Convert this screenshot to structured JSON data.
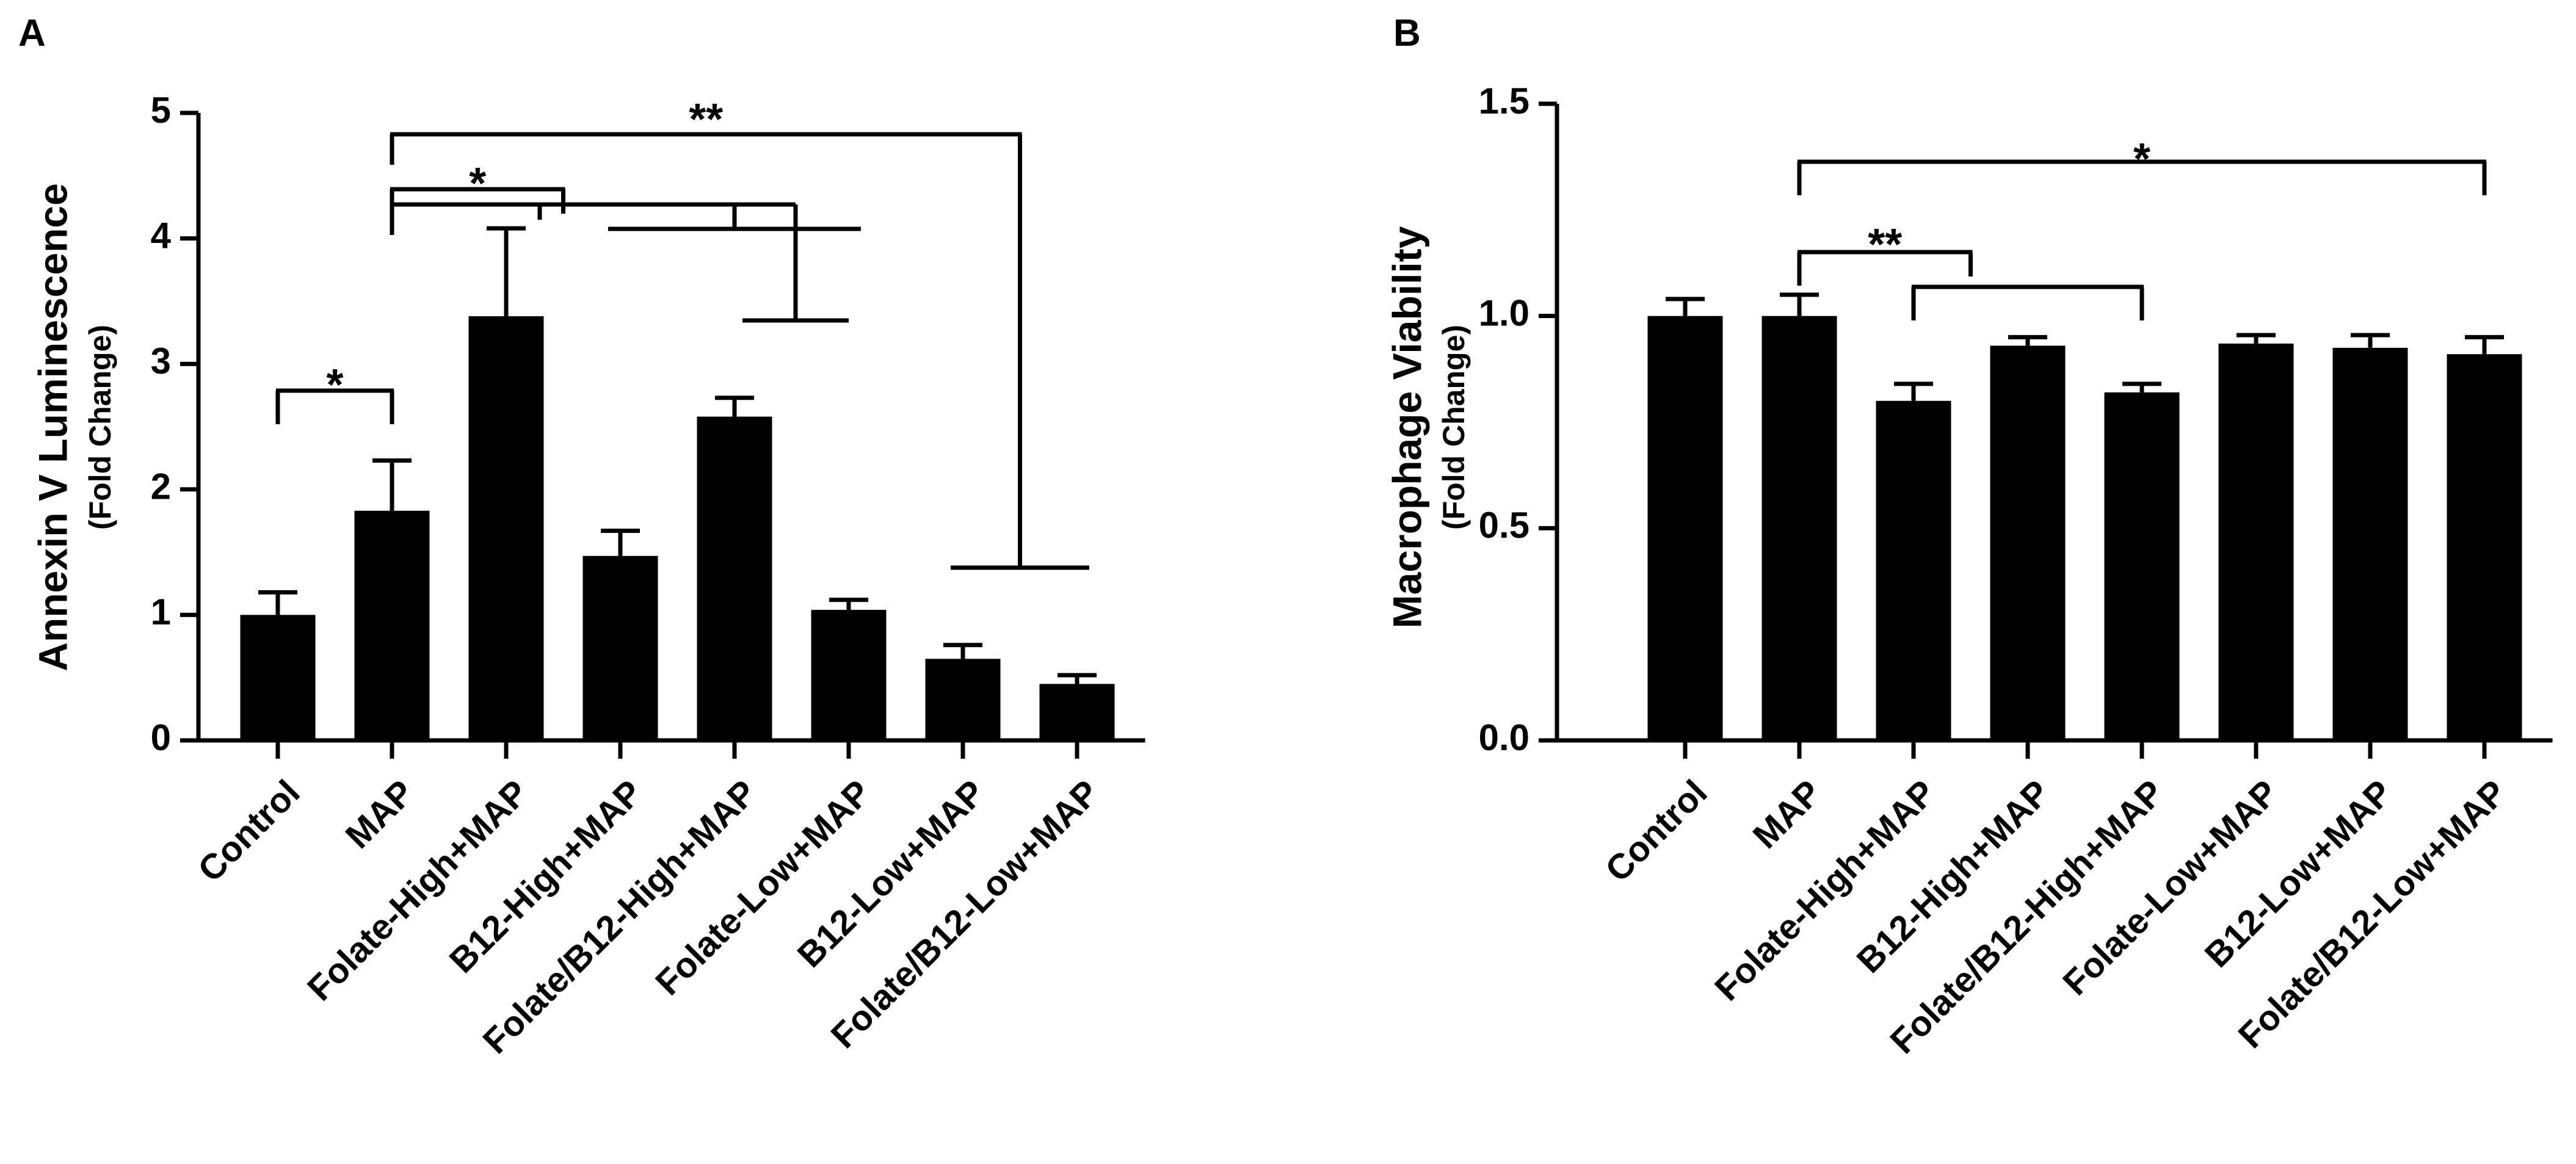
{
  "chart_data": [
    {
      "panel": "A",
      "type": "bar",
      "ylabel": "Annexin V Luminescence",
      "ylabel_sub": "(Fold Change)",
      "ylim": [
        0,
        5
      ],
      "yticks": [
        "0",
        "1",
        "2",
        "3",
        "4",
        "5"
      ],
      "categories": [
        "Control",
        "MAP",
        "Folate-High+MAP",
        "B12-High+MAP",
        "Folate/B12-High+MAP",
        "Folate-Low+MAP",
        "B12-Low+MAP",
        "Folate/B12-Low+MAP"
      ],
      "values": [
        1.0,
        1.83,
        3.38,
        1.47,
        2.58,
        1.04,
        0.65,
        0.45
      ],
      "errors": [
        0.18,
        0.4,
        0.7,
        0.2,
        0.15,
        0.08,
        0.11,
        0.07
      ],
      "significance": [
        {
          "from": 0,
          "to": 1,
          "label": "*"
        },
        {
          "from": 1,
          "to_group": [
            2,
            3
          ],
          "label": "*"
        },
        {
          "from": 1,
          "to_group": [
            3,
            5
          ],
          "label": ""
        },
        {
          "from": 1,
          "to_group": [
            6,
            7
          ],
          "label": "**"
        }
      ]
    },
    {
      "panel": "B",
      "type": "bar",
      "ylabel": "Macrophage Viability",
      "ylabel_sub": "(Fold Change)",
      "ylim": [
        0,
        1.5
      ],
      "yticks": [
        "0.0",
        "0.5",
        "1.0",
        "1.5"
      ],
      "categories": [
        "Control",
        "MAP",
        "Folate-High+MAP",
        "B12-High+MAP",
        "Folate/B12-High+MAP",
        "Folate-Low+MAP",
        "B12-Low+MAP",
        "Folate/B12-Low+MAP"
      ],
      "values": [
        1.0,
        1.0,
        0.8,
        0.93,
        0.82,
        0.935,
        0.925,
        0.91
      ],
      "errors": [
        0.04,
        0.05,
        0.04,
        0.02,
        0.02,
        0.02,
        0.03,
        0.04
      ],
      "significance": [
        {
          "from": 1,
          "to_group": [
            2,
            3
          ],
          "label": "**"
        },
        {
          "from": 2,
          "to": 4,
          "label": ""
        },
        {
          "from": 1,
          "to": 7,
          "label": "*"
        }
      ]
    }
  ]
}
